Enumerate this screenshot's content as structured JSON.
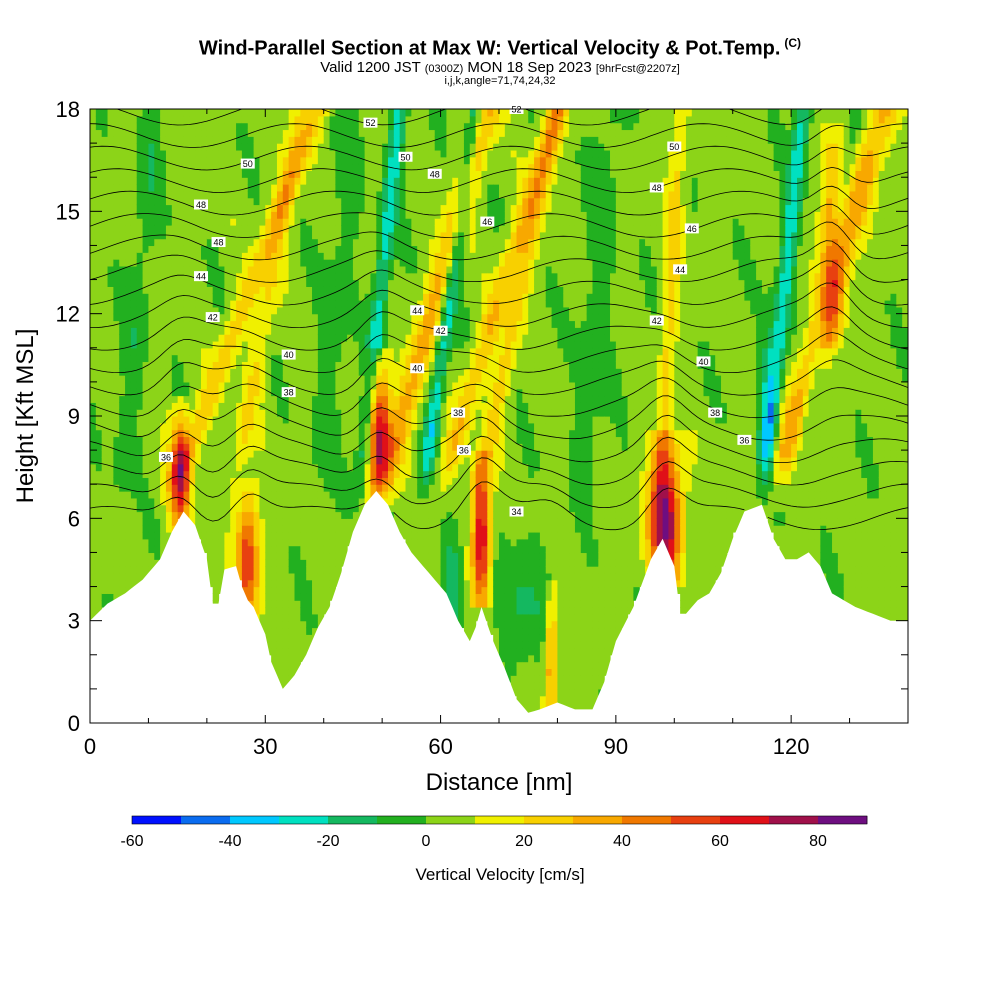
{
  "title": {
    "main": "Wind-Parallel Section at Max W: Vertical Velocity & Pot.Temp.",
    "c_flag": "(C)",
    "valid_prefix": "Valid 1200 JST",
    "valid_utc": "(0300Z)",
    "valid_date": "MON 18 Sep 2023",
    "forecast": "[9hrFcst@2207z]",
    "params": "i,j,k,angle=71,74,24,32"
  },
  "chart_data": {
    "type": "heatmap",
    "xlabel": "Distance [nm]",
    "ylabel": "Height [Kft MSL]",
    "xlim": [
      0,
      140
    ],
    "ylim": [
      0,
      18
    ],
    "x_ticks": [
      0,
      30,
      60,
      90,
      120
    ],
    "y_ticks": [
      0,
      3,
      6,
      9,
      12,
      15,
      18
    ],
    "colorbar": {
      "title": "Vertical Velocity [cm/s]",
      "ticks": [
        -60,
        -40,
        -20,
        0,
        20,
        40,
        60,
        80
      ],
      "levels": [
        -60,
        -50,
        -40,
        -30,
        -20,
        -10,
        0,
        10,
        20,
        30,
        40,
        50,
        60,
        70,
        80,
        90
      ],
      "colors": [
        "#0010ff",
        "#0a6cf0",
        "#00c8ff",
        "#00e0c0",
        "#14b860",
        "#22b020",
        "#8cd418",
        "#f0f000",
        "#f8d000",
        "#f8a800",
        "#f07800",
        "#e84010",
        "#e01018",
        "#a0104a",
        "#6e0e80"
      ]
    },
    "terrain_top_kft": [
      [
        0,
        3.0
      ],
      [
        3,
        3.5
      ],
      [
        6,
        3.8
      ],
      [
        9,
        4.2
      ],
      [
        12,
        4.8
      ],
      [
        14,
        5.6
      ],
      [
        16,
        6.2
      ],
      [
        18,
        5.8
      ],
      [
        20,
        4.8
      ],
      [
        21,
        3.5
      ],
      [
        22,
        3.5
      ],
      [
        23,
        4.5
      ],
      [
        25,
        4.6
      ],
      [
        26,
        4.0
      ],
      [
        27,
        3.6
      ],
      [
        28,
        3.4
      ],
      [
        30,
        2.6
      ],
      [
        31,
        1.8
      ],
      [
        32,
        1.4
      ],
      [
        33,
        1.0
      ],
      [
        35,
        1.4
      ],
      [
        37,
        2.0
      ],
      [
        39,
        2.8
      ],
      [
        41,
        3.4
      ],
      [
        43,
        4.4
      ],
      [
        45,
        5.6
      ],
      [
        47,
        6.4
      ],
      [
        49,
        6.8
      ],
      [
        51,
        6.4
      ],
      [
        53,
        5.6
      ],
      [
        55,
        5.0
      ],
      [
        57,
        4.6
      ],
      [
        59,
        4.2
      ],
      [
        61,
        3.8
      ],
      [
        63,
        3.0
      ],
      [
        65,
        2.4
      ],
      [
        66,
        2.8
      ],
      [
        67,
        3.4
      ],
      [
        69,
        2.4
      ],
      [
        71,
        1.6
      ],
      [
        73,
        0.7
      ],
      [
        75,
        0.3
      ],
      [
        77,
        0.4
      ],
      [
        80,
        0.6
      ],
      [
        83,
        0.4
      ],
      [
        86,
        0.4
      ],
      [
        88,
        1.2
      ],
      [
        90,
        2.4
      ],
      [
        93,
        3.4
      ],
      [
        96,
        4.8
      ],
      [
        98,
        5.4
      ],
      [
        100,
        4.6
      ],
      [
        101,
        3.2
      ],
      [
        102,
        3.2
      ],
      [
        104,
        3.6
      ],
      [
        106,
        3.8
      ],
      [
        108,
        4.4
      ],
      [
        110,
        5.4
      ],
      [
        112,
        6.2
      ],
      [
        115,
        6.4
      ],
      [
        117,
        5.4
      ],
      [
        119,
        4.8
      ],
      [
        121,
        4.8
      ],
      [
        123,
        5.0
      ],
      [
        125,
        4.6
      ],
      [
        127,
        3.8
      ],
      [
        129,
        3.6
      ],
      [
        131,
        3.4
      ],
      [
        134,
        3.2
      ],
      [
        137,
        3.0
      ],
      [
        140,
        3.0
      ]
    ],
    "updraft_cores": [
      {
        "x": 15.5,
        "ybot": 6.0,
        "ytop": 8.5,
        "w": 2.2,
        "peak_cms": 60
      },
      {
        "x": 27,
        "ybot": 3.4,
        "ytop": 6.2,
        "w": 2.5,
        "peak_cms": 55
      },
      {
        "x": 49.5,
        "ybot": 6.8,
        "ytop": 10.0,
        "w": 2.4,
        "peak_cms": 70
      },
      {
        "x": 67,
        "ybot": 4.0,
        "ytop": 7.0,
        "w": 2.0,
        "peak_cms": 70
      },
      {
        "x": 98.5,
        "ybot": 4.5,
        "ytop": 7.5,
        "w": 3.5,
        "peak_cms": 80
      },
      {
        "x": 79,
        "ybot": 0.6,
        "ytop": 3.2,
        "w": 1.4,
        "peak_cms": 40
      },
      {
        "x": 127,
        "ybot": 11.5,
        "ytop": 16.5,
        "w": 2.5,
        "peak_cms": 40
      }
    ],
    "potential_temperature_labels": [
      {
        "value": "52",
        "x": 48,
        "y": 17.6
      },
      {
        "value": "52",
        "x": 73,
        "y": 18.0
      },
      {
        "value": "50",
        "x": 27,
        "y": 16.4
      },
      {
        "value": "50",
        "x": 54,
        "y": 16.6
      },
      {
        "value": "50",
        "x": 100,
        "y": 16.9
      },
      {
        "value": "48",
        "x": 19,
        "y": 15.2
      },
      {
        "value": "48",
        "x": 59,
        "y": 16.1
      },
      {
        "value": "48",
        "x": 97,
        "y": 15.7
      },
      {
        "value": "48",
        "x": 22,
        "y": 14.1
      },
      {
        "value": "46",
        "x": 68,
        "y": 14.7
      },
      {
        "value": "46",
        "x": 103,
        "y": 14.5
      },
      {
        "value": "44",
        "x": 19,
        "y": 13.1
      },
      {
        "value": "44",
        "x": 56,
        "y": 12.1
      },
      {
        "value": "44",
        "x": 101,
        "y": 13.3
      },
      {
        "value": "42",
        "x": 21,
        "y": 11.9
      },
      {
        "value": "42",
        "x": 60,
        "y": 11.5
      },
      {
        "value": "42",
        "x": 97,
        "y": 11.8
      },
      {
        "value": "40",
        "x": 34,
        "y": 10.8
      },
      {
        "value": "40",
        "x": 56,
        "y": 10.4
      },
      {
        "value": "40",
        "x": 105,
        "y": 10.6
      },
      {
        "value": "38",
        "x": 34,
        "y": 9.7
      },
      {
        "value": "38",
        "x": 63,
        "y": 9.1
      },
      {
        "value": "38",
        "x": 107,
        "y": 9.1
      },
      {
        "value": "36",
        "x": 13,
        "y": 7.8
      },
      {
        "value": "36",
        "x": 64,
        "y": 8.0
      },
      {
        "value": "36",
        "x": 112,
        "y": 8.3
      },
      {
        "value": "34",
        "x": 73,
        "y": 6.2
      }
    ],
    "theta_levels": [
      34,
      35,
      36,
      37,
      38,
      39,
      40,
      41,
      42,
      43,
      44,
      45,
      46,
      47,
      48,
      49,
      50,
      51,
      52
    ]
  }
}
